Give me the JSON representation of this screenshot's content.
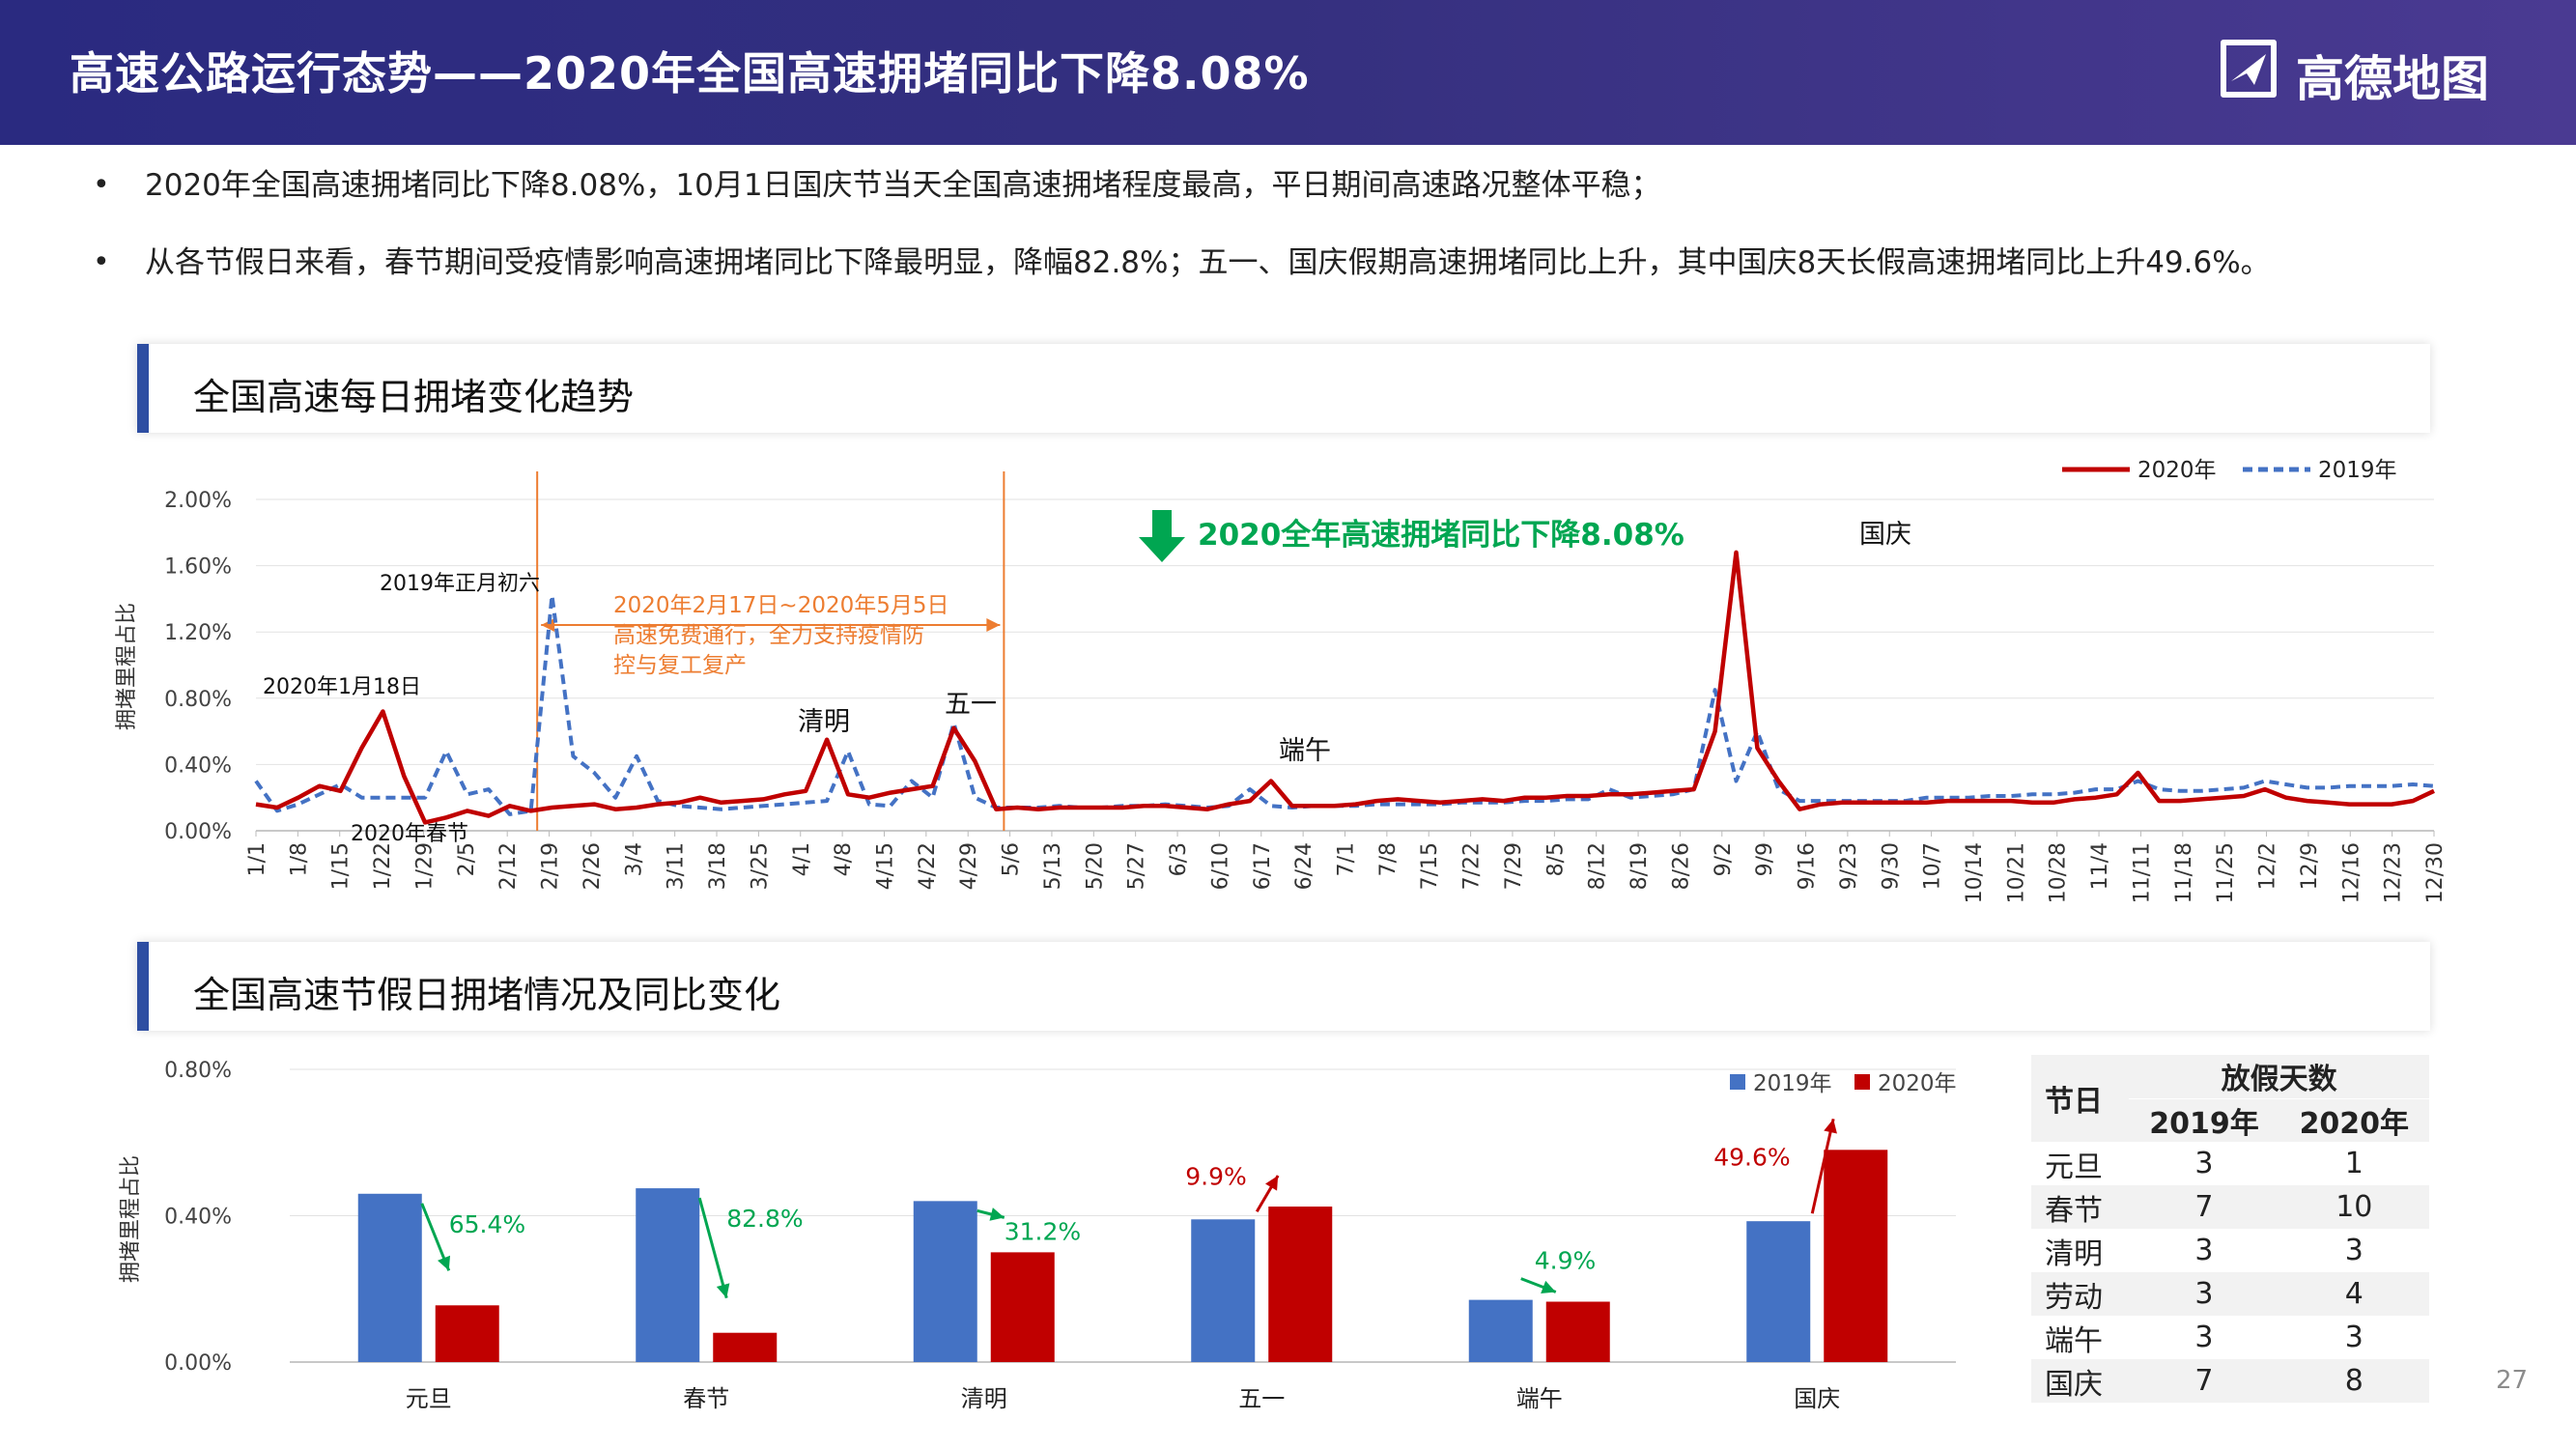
{
  "header": {
    "title": "高速公路运行态势——2020年全国高速拥堵同比下降8.08%",
    "logo_text": "高德地图"
  },
  "bullets": [
    "2020年全国高速拥堵同比下降8.08%，10月1日国庆节当天全国高速拥堵程度最高，平日期间高速路况整体平稳；",
    "从各节假日来看，春节期间受疫情影响高速拥堵同比下降最明显，降幅82.8%；五一、国庆假期高速拥堵同比上升，其中国庆8天长假高速拥堵同比上升49.6%。"
  ],
  "panel1": {
    "title": "全国高速每日拥堵变化趋势"
  },
  "panel2": {
    "title": "全国高速节假日拥堵情况及同比变化"
  },
  "colors": {
    "series_2020": "#c00000",
    "series_2019": "#4472c4",
    "accent_green": "#00a651",
    "accent_orange": "#ed7d31",
    "header_bg": "#2f2c80"
  },
  "chart_data": [
    {
      "type": "line",
      "ylabel": "拥堵里程占比",
      "ylim": [
        0,
        2.0
      ],
      "y_ticks": [
        "0.00%",
        "0.40%",
        "0.80%",
        "1.20%",
        "1.60%",
        "2.00%"
      ],
      "x_ticks": [
        "1/1",
        "1/8",
        "1/15",
        "1/22",
        "1/29",
        "2/5",
        "2/12",
        "2/19",
        "2/26",
        "3/4",
        "3/11",
        "3/18",
        "3/25",
        "4/1",
        "4/8",
        "4/15",
        "4/22",
        "4/29",
        "5/6",
        "5/13",
        "5/20",
        "5/27",
        "6/3",
        "6/10",
        "6/17",
        "6/24",
        "7/1",
        "7/8",
        "7/15",
        "7/22",
        "7/29",
        "8/5",
        "8/12",
        "8/19",
        "8/26",
        "9/2",
        "9/9",
        "9/16",
        "9/23",
        "9/30",
        "10/7",
        "10/14",
        "10/21",
        "10/28",
        "11/4",
        "11/11",
        "11/18",
        "11/25",
        "12/2",
        "12/9",
        "12/16",
        "12/23",
        "12/30"
      ],
      "legend_position": "top-right",
      "series": [
        {
          "name": "2020年",
          "style": "solid",
          "values": [
            0.16,
            0.14,
            0.2,
            0.27,
            0.24,
            0.5,
            0.72,
            0.33,
            0.05,
            0.08,
            0.12,
            0.09,
            0.15,
            0.12,
            0.14,
            0.15,
            0.16,
            0.13,
            0.14,
            0.16,
            0.17,
            0.2,
            0.17,
            0.18,
            0.19,
            0.22,
            0.24,
            0.55,
            0.22,
            0.2,
            0.23,
            0.25,
            0.27,
            0.62,
            0.42,
            0.13,
            0.14,
            0.13,
            0.14,
            0.14,
            0.14,
            0.14,
            0.15,
            0.15,
            0.14,
            0.13,
            0.16,
            0.18,
            0.3,
            0.15,
            0.15,
            0.15,
            0.16,
            0.18,
            0.19,
            0.18,
            0.17,
            0.18,
            0.19,
            0.18,
            0.2,
            0.2,
            0.21,
            0.21,
            0.22,
            0.22,
            0.23,
            0.24,
            0.25,
            0.6,
            1.68,
            0.5,
            0.3,
            0.13,
            0.16,
            0.17,
            0.17,
            0.17,
            0.17,
            0.17,
            0.18,
            0.18,
            0.18,
            0.18,
            0.17,
            0.17,
            0.19,
            0.2,
            0.22,
            0.35,
            0.18,
            0.18,
            0.19,
            0.2,
            0.21,
            0.25,
            0.2,
            0.18,
            0.17,
            0.16,
            0.16,
            0.16,
            0.18,
            0.24
          ]
        },
        {
          "name": "2019年",
          "style": "dashed",
          "values": [
            0.3,
            0.12,
            0.16,
            0.22,
            0.28,
            0.2,
            0.2,
            0.2,
            0.2,
            0.48,
            0.22,
            0.25,
            0.1,
            0.12,
            1.42,
            0.45,
            0.35,
            0.2,
            0.45,
            0.18,
            0.15,
            0.14,
            0.13,
            0.14,
            0.15,
            0.16,
            0.17,
            0.18,
            0.48,
            0.16,
            0.15,
            0.3,
            0.2,
            0.65,
            0.2,
            0.14,
            0.14,
            0.14,
            0.15,
            0.14,
            0.14,
            0.15,
            0.15,
            0.16,
            0.15,
            0.14,
            0.15,
            0.25,
            0.15,
            0.14,
            0.15,
            0.15,
            0.15,
            0.16,
            0.16,
            0.16,
            0.16,
            0.17,
            0.17,
            0.17,
            0.18,
            0.18,
            0.19,
            0.19,
            0.25,
            0.2,
            0.21,
            0.22,
            0.25,
            0.85,
            0.3,
            0.6,
            0.25,
            0.18,
            0.18,
            0.18,
            0.18,
            0.18,
            0.18,
            0.2,
            0.2,
            0.2,
            0.21,
            0.21,
            0.22,
            0.22,
            0.23,
            0.25,
            0.25,
            0.3,
            0.25,
            0.24,
            0.24,
            0.25,
            0.26,
            0.3,
            0.28,
            0.26,
            0.26,
            0.27,
            0.27,
            0.27,
            0.28,
            0.27
          ]
        }
      ],
      "annotations": {
        "headline": "2020全年高速拥堵同比下降8.08%",
        "free_toll": [
          "2020年2月17日~2020年5月5日",
          "高速免费通行，全力支持疫情防",
          "控与复工复产"
        ],
        "labels": [
          "2019年正月初六",
          "2020年1月18日",
          "2020年春节",
          "清明",
          "五一",
          "端午",
          "国庆"
        ]
      }
    },
    {
      "type": "bar",
      "ylabel": "拥堵里程占比",
      "ylim": [
        0,
        0.8
      ],
      "y_ticks": [
        "0.00%",
        "0.40%",
        "0.80%"
      ],
      "categories": [
        "元旦",
        "春节",
        "清明",
        "五一",
        "端午",
        "国庆"
      ],
      "legend_position": "top-right",
      "series": [
        {
          "name": "2019年",
          "values": [
            0.46,
            0.475,
            0.44,
            0.39,
            0.17,
            0.385
          ]
        },
        {
          "name": "2020年",
          "values": [
            0.155,
            0.08,
            0.3,
            0.425,
            0.165,
            0.58
          ]
        }
      ],
      "changes": [
        "65.4%",
        "82.8%",
        "31.2%",
        "9.9%",
        "4.9%",
        "49.6%"
      ],
      "change_direction": [
        "down",
        "down",
        "down",
        "up",
        "down",
        "up"
      ]
    }
  ],
  "table": {
    "col_label": "节日",
    "group_header": "放假天数",
    "year_headers": [
      "2019年",
      "2020年"
    ],
    "rows": [
      {
        "name": "元旦",
        "y2019": "3",
        "y2020": "1"
      },
      {
        "name": "春节",
        "y2019": "7",
        "y2020": "10"
      },
      {
        "name": "清明",
        "y2019": "3",
        "y2020": "3"
      },
      {
        "name": "劳动",
        "y2019": "3",
        "y2020": "4"
      },
      {
        "name": "端午",
        "y2019": "3",
        "y2020": "3"
      },
      {
        "name": "国庆",
        "y2019": "7",
        "y2020": "8"
      }
    ]
  },
  "page_number": "27"
}
